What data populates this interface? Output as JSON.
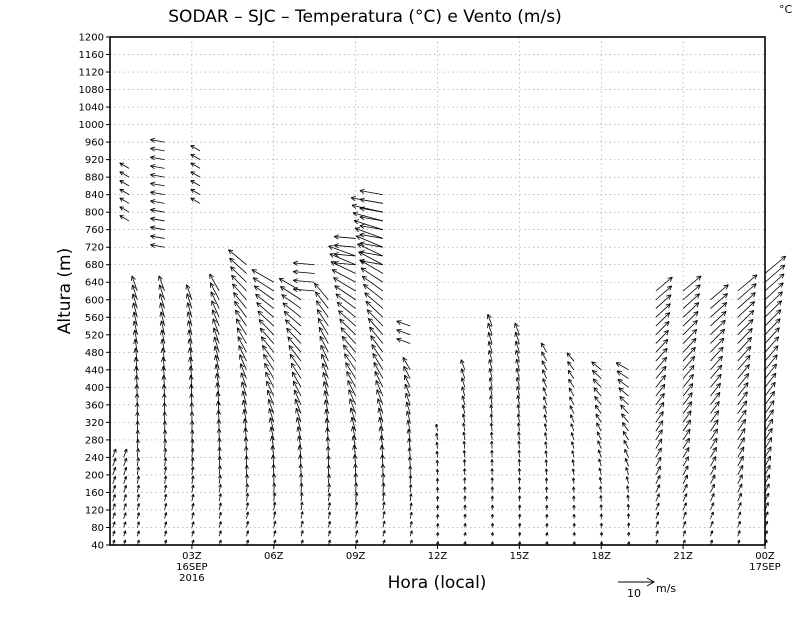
{
  "chart_data": {
    "type": "vector-field",
    "title": "SODAR – SJC – Temperatura (°C) e Vento (m/s)",
    "corner_unit": "°C",
    "xlabel": "Hora (local)",
    "ylabel": "Altura (m)",
    "ylim": [
      40,
      1200
    ],
    "yticks": [
      40,
      80,
      120,
      160,
      200,
      240,
      280,
      320,
      360,
      400,
      440,
      480,
      520,
      560,
      600,
      640,
      680,
      720,
      760,
      800,
      840,
      880,
      920,
      960,
      1000,
      1040,
      1080,
      1120,
      1160,
      1200
    ],
    "xlim_hours": [
      -3,
      21
    ],
    "xticks": [
      {
        "hour": 0,
        "label": "03Z",
        "sub1": "16SEP",
        "sub2": "2016"
      },
      {
        "hour": 3,
        "label": "06Z",
        "sub1": "",
        "sub2": ""
      },
      {
        "hour": 6,
        "label": "09Z",
        "sub1": "",
        "sub2": ""
      },
      {
        "hour": 9,
        "label": "12Z",
        "sub1": "",
        "sub2": ""
      },
      {
        "hour": 12,
        "label": "15Z",
        "sub1": "",
        "sub2": ""
      },
      {
        "hour": 15,
        "label": "18Z",
        "sub1": "",
        "sub2": ""
      },
      {
        "hour": 18,
        "label": "21Z",
        "sub1": "",
        "sub2": ""
      },
      {
        "hour": 21,
        "label": "00Z",
        "sub1": "17SEP",
        "sub2": ""
      }
    ],
    "reference_vector": {
      "speed": 10,
      "label": "10",
      "unit": "m/s"
    },
    "height_step_m": 20,
    "profiles": [
      {
        "hour": -2.9,
        "top": 240,
        "speed_low": 1.5,
        "speed_high": 2.5,
        "dir_low": 200,
        "dir_high": 200
      },
      {
        "hour": -2.5,
        "top": 240,
        "speed_low": 1.5,
        "speed_high": 2.5,
        "dir_low": 200,
        "dir_high": 200
      },
      {
        "hour": -2.0,
        "top": 630,
        "speed_low": 1.5,
        "speed_high": 4.5,
        "dir_low": 200,
        "dir_high": 160
      },
      {
        "hour": -1.0,
        "top": 620,
        "speed_low": 1.5,
        "speed_high": 4.5,
        "dir_low": 200,
        "dir_high": 160
      },
      {
        "hour": 0.0,
        "top": 610,
        "speed_low": 1.5,
        "speed_high": 4.5,
        "dir_low": 200,
        "dir_high": 160
      },
      {
        "hour": 1.0,
        "top": 630,
        "speed_low": 1.5,
        "speed_high": 5.5,
        "dir_low": 200,
        "dir_high": 150
      },
      {
        "hour": 2.0,
        "top": 680,
        "speed_low": 1.5,
        "speed_high": 6.5,
        "dir_low": 200,
        "dir_high": 130
      },
      {
        "hour": 3.0,
        "top": 640,
        "speed_low": 1.5,
        "speed_high": 7.0,
        "dir_low": 200,
        "dir_high": 120
      },
      {
        "hour": 4.0,
        "top": 620,
        "speed_low": 1.5,
        "speed_high": 7.0,
        "dir_low": 200,
        "dir_high": 120
      },
      {
        "hour": 5.0,
        "top": 600,
        "speed_low": 1.5,
        "speed_high": 6.0,
        "dir_low": 200,
        "dir_high": 140
      },
      {
        "hour": 6.0,
        "top": 700,
        "speed_low": 1.5,
        "speed_high": 8.0,
        "dir_low": 200,
        "dir_high": 110
      },
      {
        "hour": 7.0,
        "top": 820,
        "speed_low": 1.5,
        "speed_high": 9.0,
        "dir_low": 200,
        "dir_high": 100
      },
      {
        "hour": 8.0,
        "top": 440,
        "speed_low": 1.5,
        "speed_high": 4.0,
        "dir_low": 200,
        "dir_high": 150
      },
      {
        "hour": 9.0,
        "top": 300,
        "speed_low": 1.0,
        "speed_high": 2.0,
        "dir_low": 190,
        "dir_high": 170
      },
      {
        "hour": 10.0,
        "top": 440,
        "speed_low": 1.0,
        "speed_high": 3.0,
        "dir_low": 190,
        "dir_high": 160
      },
      {
        "hour": 11.0,
        "top": 540,
        "speed_low": 1.0,
        "speed_high": 3.5,
        "dir_low": 190,
        "dir_high": 160
      },
      {
        "hour": 12.0,
        "top": 520,
        "speed_low": 1.0,
        "speed_high": 3.5,
        "dir_low": 190,
        "dir_high": 160
      },
      {
        "hour": 13.0,
        "top": 480,
        "speed_low": 1.0,
        "speed_high": 3.0,
        "dir_low": 190,
        "dir_high": 150
      },
      {
        "hour": 14.0,
        "top": 460,
        "speed_low": 1.0,
        "speed_high": 3.0,
        "dir_low": 190,
        "dir_high": 140
      },
      {
        "hour": 15.0,
        "top": 440,
        "speed_low": 1.0,
        "speed_high": 3.5,
        "dir_low": 190,
        "dir_high": 130
      },
      {
        "hour": 16.0,
        "top": 440,
        "speed_low": 1.0,
        "speed_high": 4.0,
        "dir_low": 190,
        "dir_high": 120
      },
      {
        "hour": 17.0,
        "top": 620,
        "speed_low": 1.5,
        "speed_high": 6.0,
        "dir_low": 200,
        "dir_high": 230
      },
      {
        "hour": 18.0,
        "top": 620,
        "speed_low": 1.5,
        "speed_high": 6.5,
        "dir_low": 200,
        "dir_high": 230
      },
      {
        "hour": 19.0,
        "top": 600,
        "speed_low": 1.5,
        "speed_high": 6.5,
        "dir_low": 200,
        "dir_high": 230
      },
      {
        "hour": 20.0,
        "top": 620,
        "speed_low": 1.5,
        "speed_high": 7.0,
        "dir_low": 200,
        "dir_high": 230
      },
      {
        "hour": 21.0,
        "top": 660,
        "speed_low": 1.5,
        "speed_high": 7.5,
        "dir_low": 200,
        "dir_high": 230
      }
    ],
    "upper_segments": [
      {
        "hour": -2.3,
        "bottom": 780,
        "top": 900,
        "speed": 3.0,
        "dir": 120
      },
      {
        "hour": -1.0,
        "bottom": 720,
        "top": 960,
        "speed": 4.0,
        "dir": 100
      },
      {
        "hour": 0.3,
        "bottom": 820,
        "top": 940,
        "speed": 3.0,
        "dir": 120
      },
      {
        "hour": 4.5,
        "bottom": 620,
        "top": 680,
        "speed": 6.0,
        "dir": 95
      },
      {
        "hour": 6.0,
        "bottom": 680,
        "top": 740,
        "speed": 6.0,
        "dir": 95
      },
      {
        "hour": 7.0,
        "bottom": 680,
        "top": 840,
        "speed": 6.5,
        "dir": 100
      },
      {
        "hour": 8.0,
        "bottom": 500,
        "top": 540,
        "speed": 4.0,
        "dir": 110
      }
    ]
  }
}
